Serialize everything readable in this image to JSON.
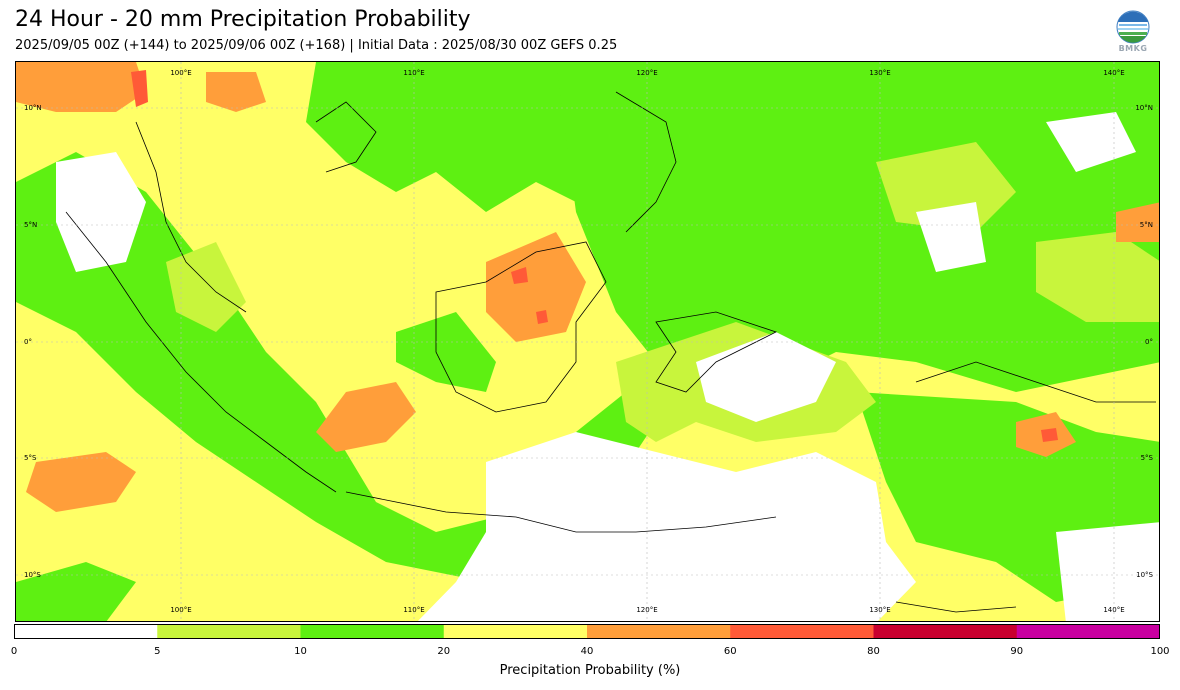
{
  "header": {
    "title": "24 Hour - 20 mm Precipitation Probability",
    "subtitle": "2025/09/05 00Z (+144) to 2025/09/06 00Z (+168) | Initial Data : 2025/08/30 00Z GEFS 0.25"
  },
  "logo": {
    "icon": "bmkg-logo-icon",
    "text": "BMKG"
  },
  "map": {
    "lon_labels": [
      "100°E",
      "110°E",
      "120°E",
      "130°E",
      "140°E"
    ],
    "lat_labels": [
      "10°N",
      "5°N",
      "0°",
      "5°S",
      "10°S"
    ]
  },
  "colorbar": {
    "title": "Precipitation Probability (%)",
    "ticks": [
      "0",
      "5",
      "10",
      "20",
      "40",
      "60",
      "80",
      "90",
      "100"
    ],
    "colors": [
      "#ffffff",
      "#c8f53c",
      "#5ef012",
      "#ffff66",
      "#ff9e3a",
      "#ff5a37",
      "#c8002f",
      "#c800a0"
    ]
  }
}
